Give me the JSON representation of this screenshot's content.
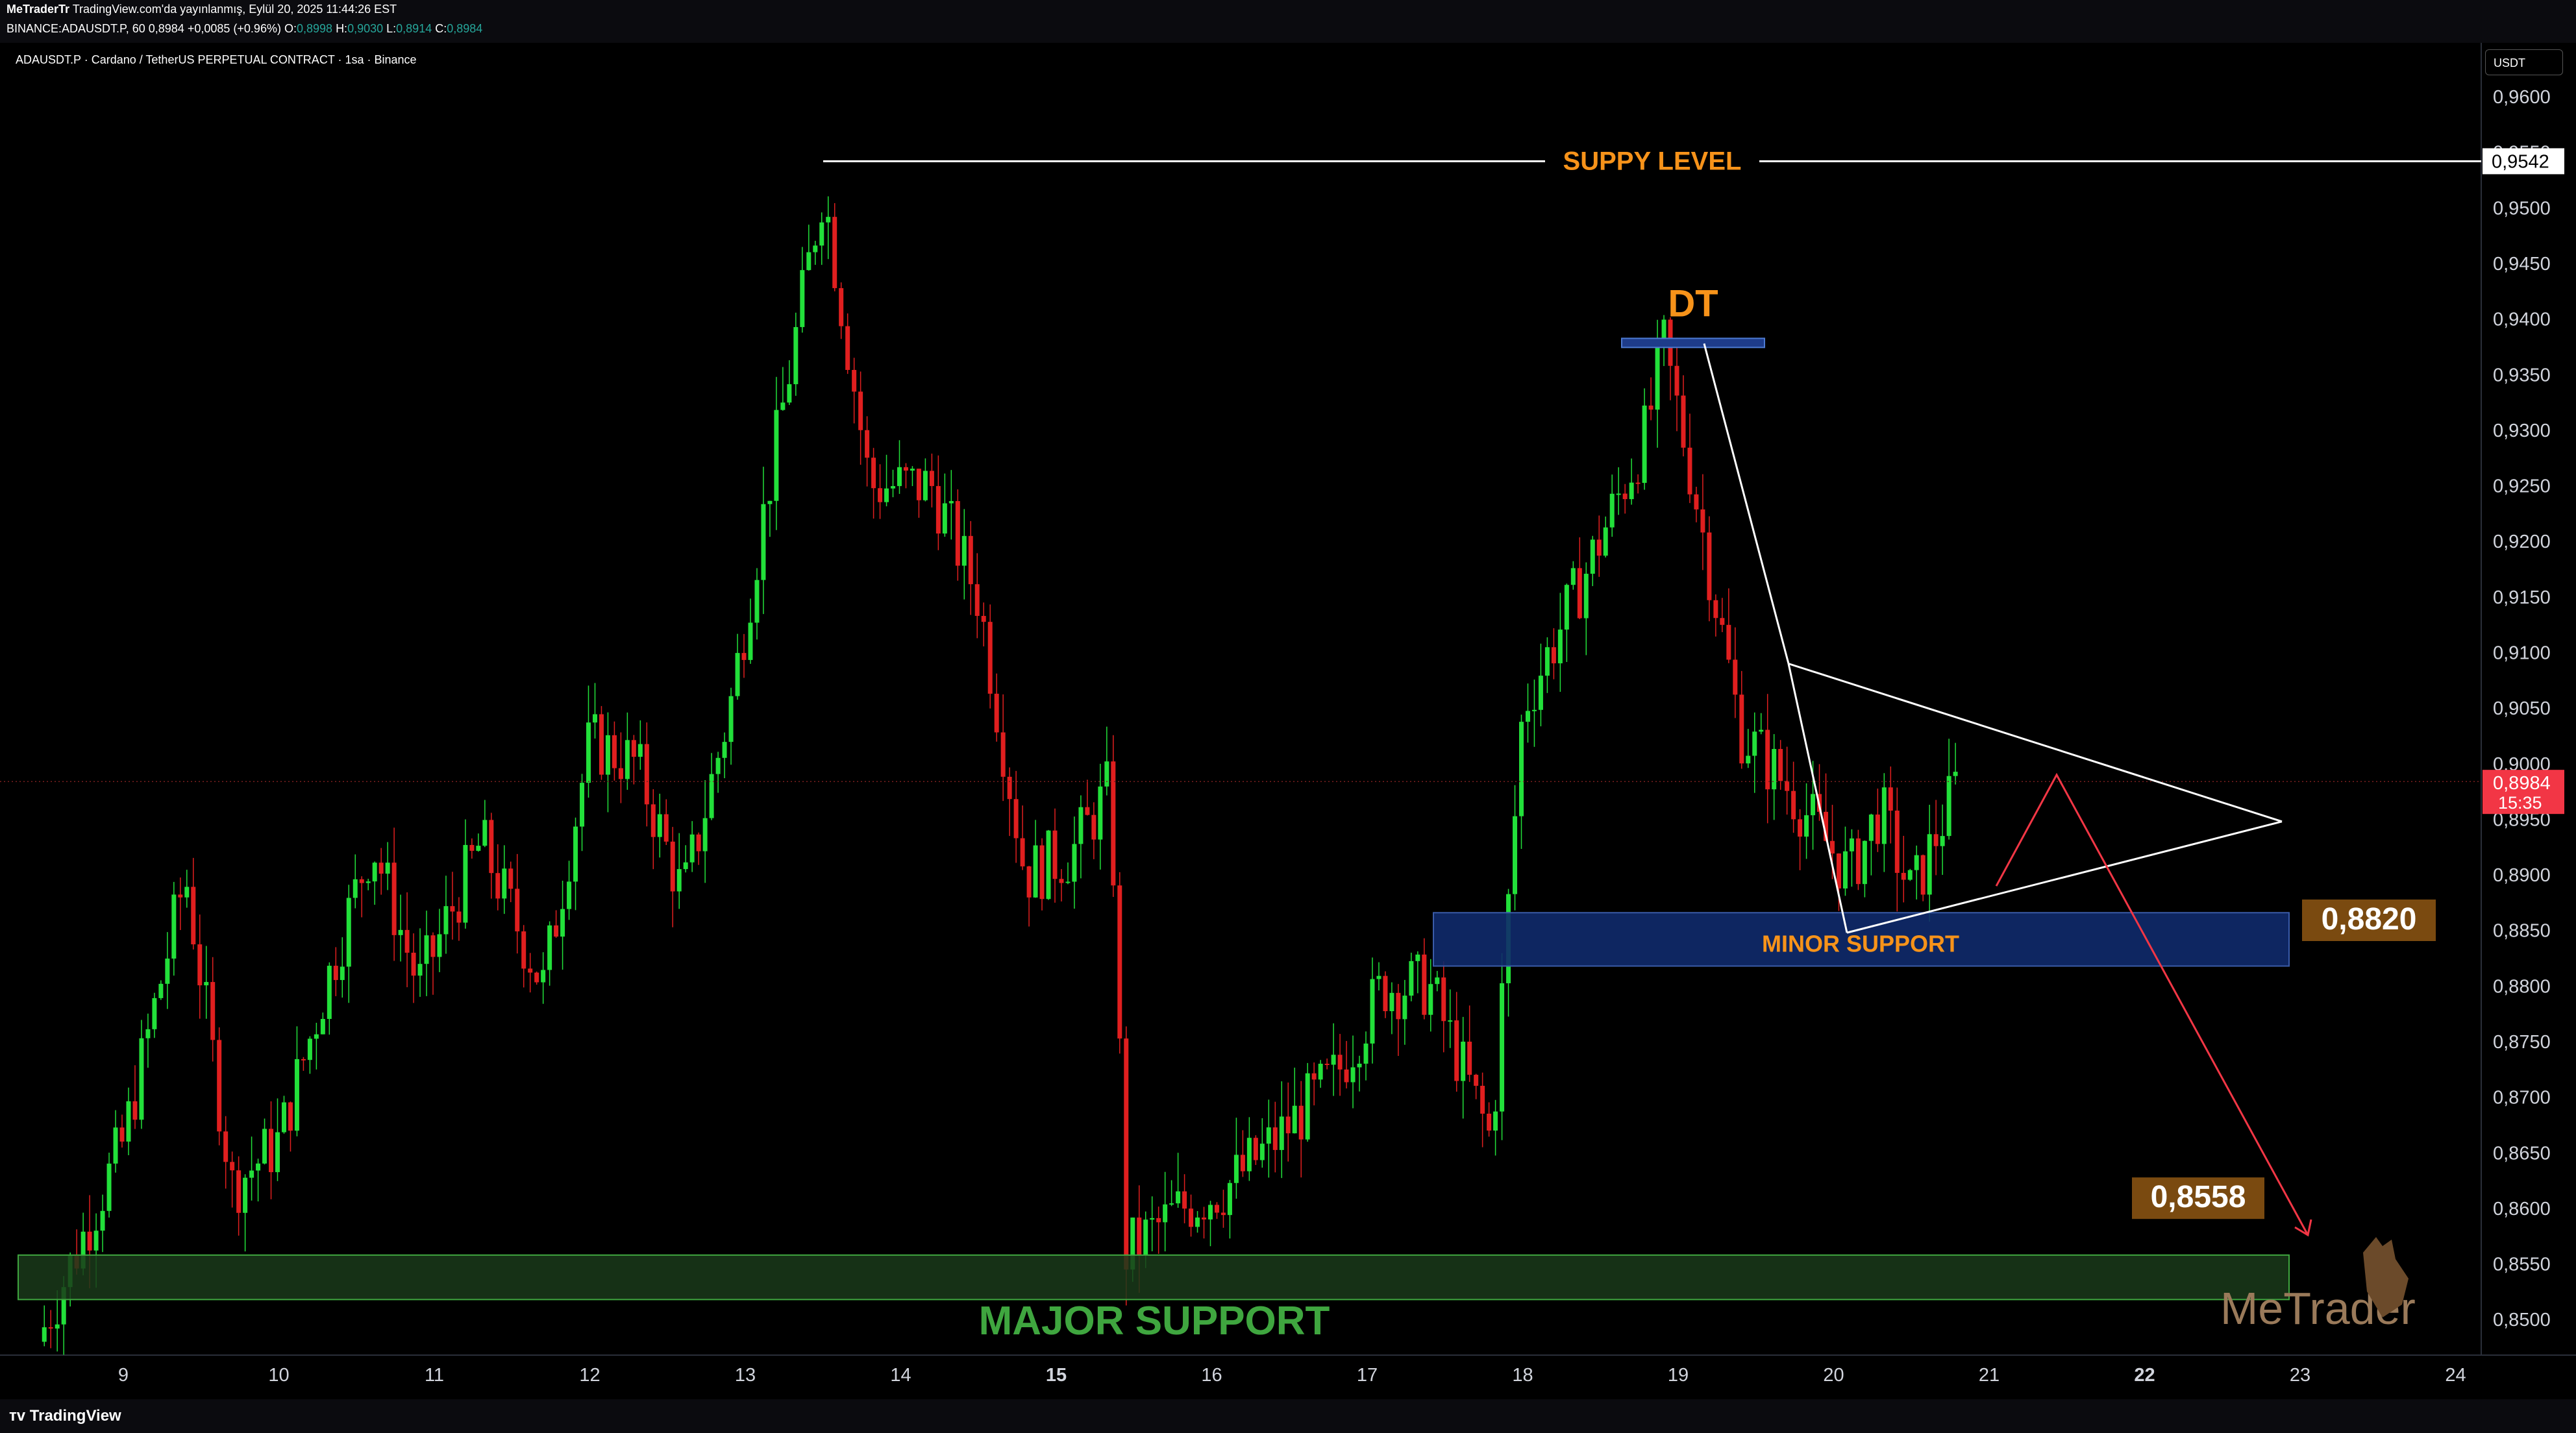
{
  "header": {
    "publisher_name": "MeTraderTr",
    "publisher_rest": " TradingView.com'da yayınlanmış, Eylül 20, 2025 11:44:26 EST",
    "symbol_line": "BINANCE:ADAUSDT.P, 60",
    "last": "0,8984",
    "change": "+0,0085 (+0.96%)",
    "o_label": "O:",
    "o_val": "0,8998",
    "h_label": "H:",
    "h_val": "0,9030",
    "l_label": "L:",
    "l_val": "0,8914",
    "c_label": "C:",
    "c_val": "0,8984"
  },
  "legend": "ADAUSDT.P · Cardano / TetherUS PERPETUAL CONTRACT · 1sa · Binance",
  "currency": "USDT",
  "footer": {
    "brand": "TradingView"
  },
  "watermark": "MeTrader",
  "colors": {
    "up": "#22e03a",
    "down": "#e01f1f",
    "orange": "#f7931a",
    "green_text": "#3fa63f",
    "zone_blue": "#0f2a6b",
    "zone_green": "#1a3a1a",
    "price_tag": "#f23645"
  },
  "chart_data": {
    "type": "candlestick",
    "y_ticks": [
      "0,9600",
      "0,9550",
      "0,9500",
      "0,9450",
      "0,9400",
      "0,9350",
      "0,9300",
      "0,9250",
      "0,9200",
      "0,9150",
      "0,9100",
      "0,9050",
      "0,9000",
      "0,8950",
      "0,8900",
      "0,8850",
      "0,8800",
      "0,8750",
      "0,8700",
      "0,8650",
      "0,8600",
      "0,8550",
      "0,8500"
    ],
    "y_tick_values": [
      0.96,
      0.955,
      0.95,
      0.945,
      0.94,
      0.935,
      0.93,
      0.925,
      0.92,
      0.915,
      0.91,
      0.905,
      0.9,
      0.895,
      0.89,
      0.885,
      0.88,
      0.875,
      0.87,
      0.865,
      0.86,
      0.855,
      0.85
    ],
    "x_ticks": [
      "9",
      "10",
      "11",
      "12",
      "13",
      "14",
      "15",
      "16",
      "17",
      "18",
      "19",
      "20",
      "21",
      "22",
      "23",
      "24"
    ],
    "x_bold": [
      "15",
      "22"
    ],
    "ylim": [
      0.8468,
      0.9631
    ],
    "current_price": "0,8984",
    "countdown": "15:35",
    "supply_price_label": "0,9542",
    "annotations": {
      "supply": "SUPPY LEVEL",
      "dt": "DT",
      "minor_support": "MINOR SUPPORT",
      "minor_price": "0,8820",
      "major_support": "MAJOR SUPPORT",
      "major_price": "0,8558"
    },
    "key_levels": {
      "supply": 0.9542,
      "dt_top": 0.9378,
      "minor_top": 0.8866,
      "minor_bottom": 0.8818,
      "major_top": 0.8558,
      "major_bottom": 0.8518
    },
    "anchors": [
      [
        8.45,
        0.848
      ],
      [
        9.0,
        0.866
      ],
      [
        9.4,
        0.89
      ],
      [
        9.7,
        0.862
      ],
      [
        10.0,
        0.866
      ],
      [
        10.3,
        0.88
      ],
      [
        10.6,
        0.893
      ],
      [
        10.9,
        0.88
      ],
      [
        11.3,
        0.893
      ],
      [
        11.7,
        0.88
      ],
      [
        12.0,
        0.902
      ],
      [
        12.3,
        0.9
      ],
      [
        12.6,
        0.888
      ],
      [
        12.9,
        0.905
      ],
      [
        13.15,
        0.925
      ],
      [
        13.5,
        0.952
      ],
      [
        13.8,
        0.925
      ],
      [
        14.2,
        0.925
      ],
      [
        14.5,
        0.915
      ],
      [
        14.8,
        0.89
      ],
      [
        15.1,
        0.892
      ],
      [
        15.35,
        0.898
      ],
      [
        15.45,
        0.856
      ],
      [
        15.8,
        0.86
      ],
      [
        16.1,
        0.862
      ],
      [
        16.4,
        0.866
      ],
      [
        16.8,
        0.872
      ],
      [
        17.1,
        0.88
      ],
      [
        17.4,
        0.88
      ],
      [
        17.8,
        0.866
      ],
      [
        18.0,
        0.905
      ],
      [
        18.4,
        0.917
      ],
      [
        18.8,
        0.93
      ],
      [
        18.9,
        0.938
      ],
      [
        19.1,
        0.925
      ],
      [
        19.4,
        0.903
      ],
      [
        19.7,
        0.898
      ],
      [
        20.1,
        0.89
      ],
      [
        20.3,
        0.896
      ],
      [
        20.5,
        0.888
      ],
      [
        20.8,
        0.8984
      ]
    ]
  }
}
